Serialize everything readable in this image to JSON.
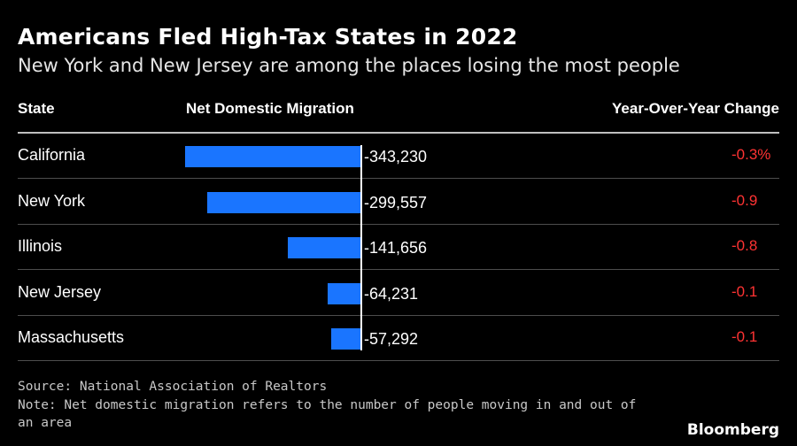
{
  "header": {
    "title": "Americans Fled High-Tax States in 2022",
    "subtitle": "New York and New Jersey are among the places losing the most people"
  },
  "table": {
    "columns": [
      "State",
      "Net Domestic Migration",
      "Year-Over-Year Change"
    ]
  },
  "chart_data": {
    "type": "bar",
    "orientation": "horizontal",
    "categories": [
      "California",
      "New York",
      "Illinois",
      "New Jersey",
      "Massachusetts"
    ],
    "values": [
      -343230,
      -299557,
      -141656,
      -64231,
      -57292
    ],
    "value_labels": [
      "-343,230",
      "-299,557",
      "-141,656",
      "-64,231",
      "-57,292"
    ],
    "yoy_change": [
      "-0.3%",
      "-0.9",
      "-0.8",
      "-0.1",
      "-0.1"
    ],
    "title": "Americans Fled High-Tax States in 2022",
    "subtitle": "New York and New Jersey are among the places losing the most people",
    "bar_color": "#1a75ff",
    "yoy_color": "#ff3333",
    "grid": false
  },
  "footer": {
    "source": "Source: National Association of Realtors",
    "note_line1": "Note: Net domestic migration refers to the number of people moving in and out of",
    "note_line2": "an area",
    "brand": "Bloomberg"
  }
}
